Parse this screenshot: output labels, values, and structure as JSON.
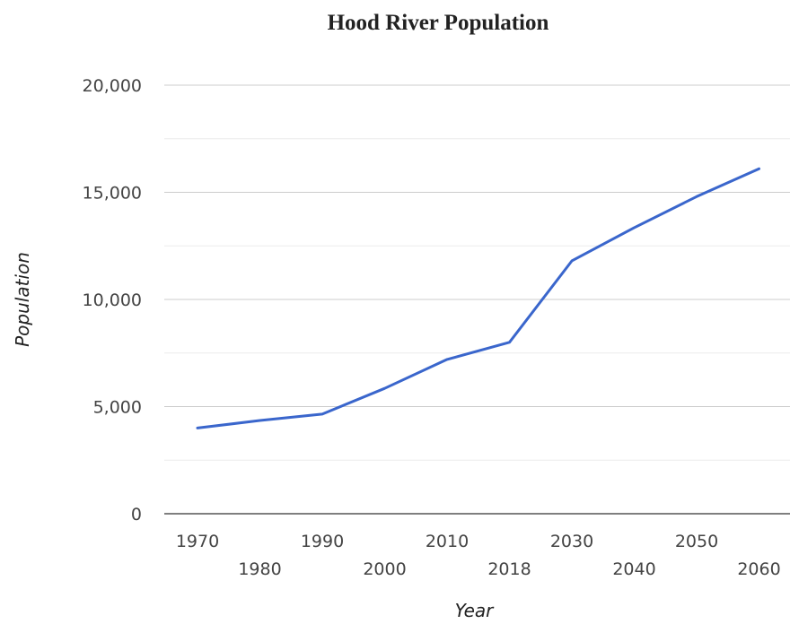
{
  "chart_data": {
    "type": "line",
    "title": "Hood River Population",
    "xlabel": "Year",
    "ylabel": "Population",
    "ylim": [
      0,
      20000
    ],
    "y_ticks": [
      "0",
      "5,000",
      "10,000",
      "15,000",
      "20,000"
    ],
    "y_tick_values": [
      0,
      5000,
      10000,
      15000,
      20000
    ],
    "grid": true,
    "categories": [
      "1970",
      "1980",
      "1990",
      "2000",
      "2010",
      "2018",
      "2030",
      "2040",
      "2050",
      "2060"
    ],
    "series": [
      {
        "color": "#3a66cc",
        "values": [
          4000,
          4350,
          4650,
          5850,
          7200,
          8000,
          11800,
          13350,
          14800,
          16100
        ]
      }
    ]
  }
}
